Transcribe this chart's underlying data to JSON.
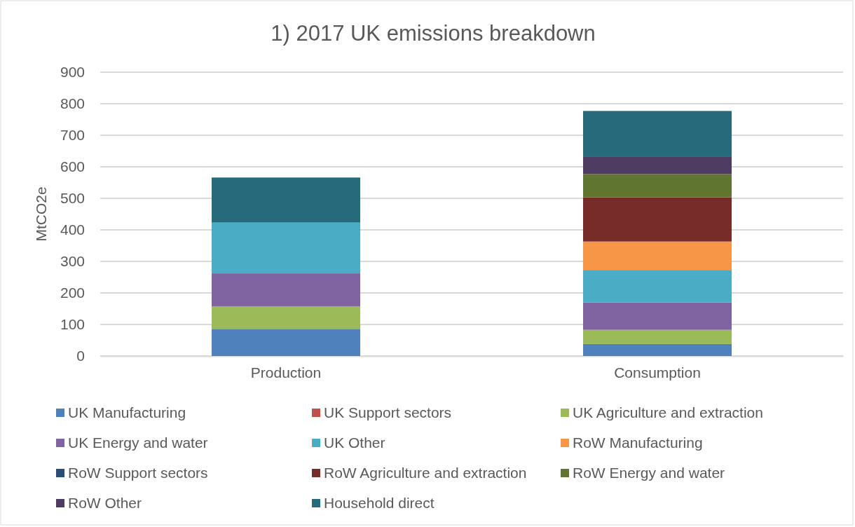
{
  "chart_data": {
    "type": "bar",
    "title": "1) 2017 UK emissions breakdown",
    "ylabel": "MtCO2e",
    "categories": [
      "Production",
      "Consumption"
    ],
    "stacked": true,
    "ylim": [
      0,
      900
    ],
    "yticks": [
      0,
      100,
      200,
      300,
      400,
      500,
      600,
      700,
      800,
      900
    ],
    "grid": "y",
    "legend": "bottom",
    "series": [
      {
        "name": "UK Manufacturing",
        "color": "#4f81bd",
        "values": [
          86,
          38
        ]
      },
      {
        "name": "UK Support sectors",
        "color": "#c0504d",
        "values": [
          0,
          0
        ]
      },
      {
        "name": "UK Agriculture and extraction",
        "color": "#9bbb59",
        "values": [
          71,
          45
        ]
      },
      {
        "name": "UK Energy and water",
        "color": "#8064a2",
        "values": [
          105,
          87
        ]
      },
      {
        "name": "UK Other",
        "color": "#4bacc6",
        "values": [
          161,
          103
        ]
      },
      {
        "name": "RoW Manufacturing",
        "color": "#f79646",
        "values": [
          0,
          90
        ]
      },
      {
        "name": "RoW Support sectors",
        "color": "#2c4d75",
        "values": [
          0,
          0
        ]
      },
      {
        "name": "RoW Agriculture and extraction",
        "color": "#772c2a",
        "values": [
          0,
          140
        ]
      },
      {
        "name": "RoW Energy and water",
        "color": "#5f7530",
        "values": [
          0,
          74
        ]
      },
      {
        "name": "RoW Other",
        "color": "#4d3b62",
        "values": [
          0,
          56
        ]
      },
      {
        "name": "Household direct",
        "color": "#276a7c",
        "values": [
          143,
          144
        ]
      }
    ]
  }
}
